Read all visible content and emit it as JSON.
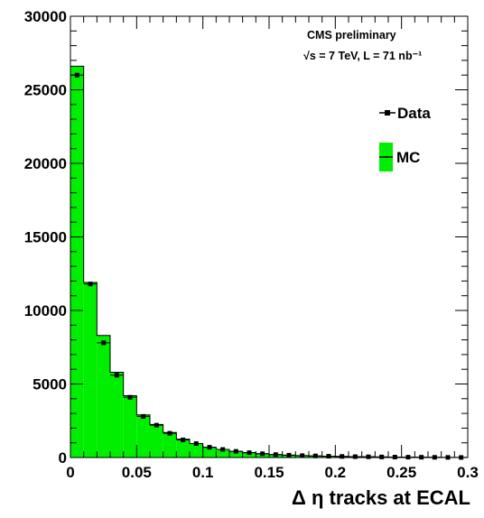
{
  "chart_data": {
    "type": "bar",
    "xlabel": "Δ η tracks at ECAL",
    "ylabel": "",
    "xlim": [
      0,
      0.3
    ],
    "ylim": [
      0,
      30000
    ],
    "x_ticks": [
      "0",
      "0.05",
      "0.1",
      "0.15",
      "0.2",
      "0.25",
      "0.3"
    ],
    "y_ticks": [
      "0",
      "5000",
      "10000",
      "15000",
      "20000",
      "25000",
      "30000"
    ],
    "annotations": [
      "CMS preliminary",
      "√s = 7 TeV, L = 71 nb⁻¹"
    ],
    "legend": {
      "position": "top-right",
      "entries": [
        "Data",
        "MC"
      ]
    },
    "bin_width": 0.01,
    "bin_edges_start": 0,
    "series": [
      {
        "name": "MC",
        "style": "filled-histogram",
        "color": "#00ee00",
        "values": [
          26600,
          11900,
          8300,
          5800,
          4200,
          2900,
          2250,
          1700,
          1250,
          950,
          700,
          550,
          420,
          330,
          260,
          200,
          160,
          130,
          110,
          90,
          75,
          60,
          50,
          40,
          30,
          25,
          20,
          15,
          10,
          5
        ]
      },
      {
        "name": "Data",
        "style": "points",
        "color": "#000000",
        "values": [
          26000,
          11800,
          7800,
          5600,
          4100,
          2800,
          2200,
          1650,
          1200,
          950,
          700,
          550,
          420,
          330,
          260,
          200,
          160,
          130,
          110,
          90,
          75,
          60,
          50,
          40,
          30,
          25,
          20,
          15,
          10,
          5
        ]
      }
    ]
  }
}
